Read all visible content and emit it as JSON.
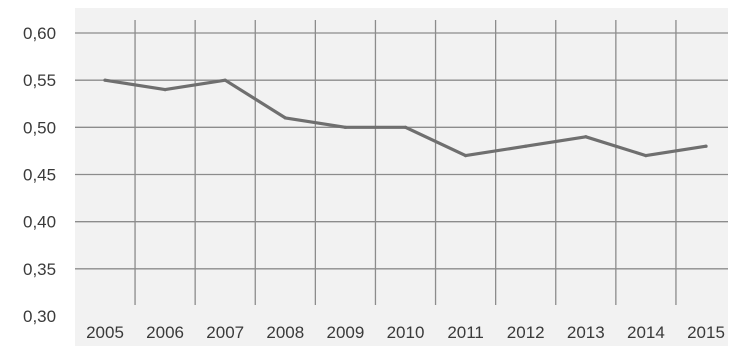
{
  "chart_data": {
    "type": "line",
    "title": "",
    "xlabel": "",
    "ylabel": "",
    "x": [
      "2005",
      "2006",
      "2007",
      "2008",
      "2009",
      "2010",
      "2011",
      "2012",
      "2013",
      "2014",
      "2015"
    ],
    "y_tick_labels": [
      "0,30",
      "0,35",
      "0,40",
      "0,45",
      "0,50",
      "0,55",
      "0,60"
    ],
    "ylim": [
      0.3,
      0.6
    ],
    "grid": "on",
    "series": [
      {
        "values": [
          0.55,
          0.54,
          0.55,
          0.51,
          0.5,
          0.5,
          0.47,
          0.48,
          0.49,
          0.47,
          0.48
        ]
      }
    ],
    "colors": {
      "background": "#f2f2f2",
      "grid": "#8c8c8c",
      "line": "#6f6f6f",
      "text": "#3a3a3a"
    }
  }
}
